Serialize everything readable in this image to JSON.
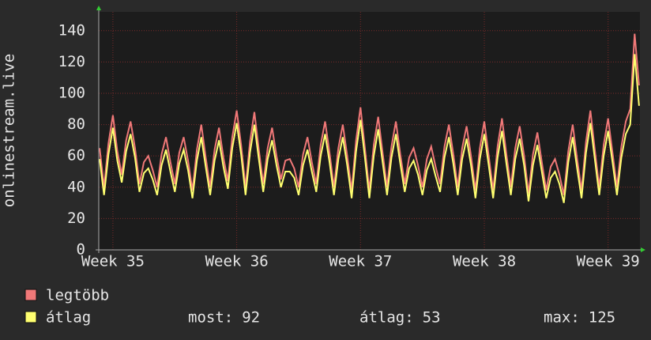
{
  "chart_data": {
    "type": "line",
    "y_label": "onlinestream.live",
    "x": [
      -0.75,
      -0.5,
      -0.25,
      0,
      0.25,
      0.5,
      0.75,
      1,
      1.25,
      1.5,
      1.75,
      2,
      2.25,
      2.5,
      2.75,
      3,
      3.25,
      3.5,
      3.75,
      4,
      4.25,
      4.5,
      4.75,
      5,
      5.25,
      5.5,
      5.75,
      6,
      6.25,
      6.5,
      6.75,
      7,
      7.25,
      7.5,
      7.75,
      8,
      8.25,
      8.5,
      8.75,
      9,
      9.25,
      9.5,
      9.75,
      10,
      10.25,
      10.5,
      10.75,
      11,
      11.25,
      11.5,
      11.75,
      12,
      12.25,
      12.5,
      12.75,
      13,
      13.25,
      13.5,
      13.75,
      14,
      14.25,
      14.5,
      14.75,
      15,
      15.25,
      15.5,
      15.75,
      16,
      16.25,
      16.5,
      16.75,
      17,
      17.25,
      17.5,
      17.75,
      18,
      18.25,
      18.5,
      18.75,
      19,
      19.25,
      19.5,
      19.75,
      20,
      20.25,
      20.5,
      20.75,
      21,
      21.25,
      21.5,
      21.75,
      22,
      22.25,
      22.5,
      22.75,
      23,
      23.25,
      23.5,
      23.75,
      24,
      24.25,
      24.5,
      24.75,
      25,
      25.25,
      25.5,
      25.75,
      26,
      26.25,
      26.5,
      26.75,
      27,
      27.25,
      27.5,
      27.75,
      28,
      28.25,
      28.5,
      28.75,
      29,
      29.25,
      29.5,
      29.75
    ],
    "series": [
      {
        "name": "legtöbb",
        "color": "#f07878",
        "values": [
          65,
          40,
          68,
          86,
          63,
          48,
          70,
          82,
          65,
          42,
          56,
          60,
          51,
          40,
          61,
          72,
          56,
          42,
          62,
          72,
          57,
          38,
          64,
          80,
          59,
          40,
          64,
          78,
          59,
          44,
          72,
          89,
          67,
          40,
          69,
          88,
          64,
          42,
          65,
          78,
          60,
          45,
          57,
          58,
          52,
          40,
          61,
          72,
          56,
          42,
          67,
          82,
          62,
          40,
          65,
          80,
          60,
          38,
          70,
          91,
          65,
          38,
          67,
          85,
          62,
          40,
          66,
          82,
          61,
          42,
          59,
          65,
          54,
          40,
          58,
          66,
          53,
          42,
          66,
          80,
          61,
          40,
          65,
          79,
          60,
          38,
          65,
          82,
          60,
          38,
          66,
          84,
          61,
          40,
          65,
          79,
          60,
          36,
          61,
          75,
          56,
          38,
          53,
          58,
          48,
          35,
          63,
          80,
          58,
          38,
          69,
          89,
          64,
          40,
          67,
          84,
          62,
          40,
          66,
          82,
          90,
          138,
          105
        ]
      },
      {
        "name": "átlag",
        "color": "#ffff70",
        "values": [
          58,
          35,
          61,
          78,
          57,
          43,
          63,
          74,
          59,
          37,
          49,
          52,
          45,
          35,
          54,
          64,
          50,
          37,
          55,
          64,
          51,
          33,
          57,
          72,
          53,
          35,
          57,
          70,
          53,
          39,
          65,
          81,
          61,
          35,
          62,
          80,
          58,
          37,
          58,
          70,
          54,
          40,
          50,
          50,
          46,
          35,
          54,
          64,
          50,
          37,
          60,
          74,
          56,
          35,
          58,
          72,
          54,
          33,
          63,
          83,
          59,
          33,
          60,
          77,
          56,
          35,
          59,
          74,
          55,
          37,
          52,
          57,
          48,
          35,
          51,
          58,
          47,
          37,
          59,
          72,
          55,
          35,
          58,
          71,
          54,
          33,
          58,
          74,
          54,
          33,
          59,
          76,
          55,
          35,
          58,
          71,
          54,
          31,
          54,
          67,
          50,
          33,
          46,
          50,
          42,
          30,
          56,
          72,
          52,
          33,
          62,
          81,
          58,
          35,
          60,
          76,
          56,
          35,
          59,
          74,
          80,
          125,
          92
        ]
      }
    ],
    "xlim": [
      -0.8,
      29.8
    ],
    "xticks": [
      {
        "value": 0,
        "label": "Week 35"
      },
      {
        "value": 7,
        "label": "Week 36"
      },
      {
        "value": 14,
        "label": "Week 37"
      },
      {
        "value": 21,
        "label": "Week 38"
      },
      {
        "value": 28,
        "label": "Week 39"
      }
    ],
    "ylim": [
      0,
      152
    ],
    "yticks": [
      0,
      20,
      40,
      60,
      80,
      100,
      120,
      140
    ],
    "grid": true,
    "stats": [
      {
        "label": "most:",
        "value": 92
      },
      {
        "label": "átlag:",
        "value": 53
      },
      {
        "label": "max:",
        "value": 125
      }
    ]
  }
}
